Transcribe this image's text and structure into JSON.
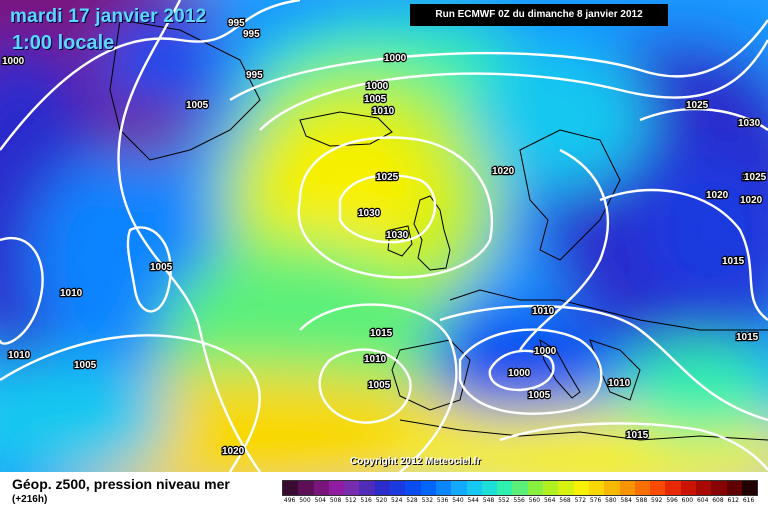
{
  "header": {
    "date": "mardi 17 janvier 2012",
    "time": "1:00 locale",
    "run": "Run ECMWF 0Z du dimanche 8 janvier 2012"
  },
  "copyright": "Copyright 2012 Meteociel.fr",
  "legend": {
    "title": "Géop. z500, pression niveau mer",
    "subtitle": "(+216h)",
    "values": [
      "496",
      "500",
      "504",
      "508",
      "512",
      "516",
      "520",
      "524",
      "528",
      "532",
      "536",
      "540",
      "544",
      "548",
      "552",
      "556",
      "560",
      "564",
      "568",
      "572",
      "576",
      "580",
      "584",
      "588",
      "592",
      "596",
      "600",
      "604",
      "608",
      "612",
      "616"
    ],
    "colors": [
      "#3b0a33",
      "#5c0e56",
      "#7a157e",
      "#901ca0",
      "#7a2cb0",
      "#4e2bb8",
      "#2a2ccc",
      "#1a3ae0",
      "#0a4cf0",
      "#0064ff",
      "#0a84ff",
      "#14a8ff",
      "#14c8f0",
      "#1ce0d8",
      "#30f0b0",
      "#5cf07a",
      "#88f040",
      "#b0f020",
      "#d8f010",
      "#f8f000",
      "#f8d800",
      "#f8b800",
      "#f89400",
      "#f87000",
      "#f84a00",
      "#e82800",
      "#c81400",
      "#a80a00",
      "#880400",
      "#600000",
      "#200000"
    ]
  },
  "isobars": [
    {
      "text": "995"
    },
    {
      "text": "995"
    },
    {
      "text": "995"
    },
    {
      "text": "1000"
    },
    {
      "text": "1000"
    },
    {
      "text": "1000"
    },
    {
      "text": "1005"
    },
    {
      "text": "1005"
    },
    {
      "text": "1010"
    },
    {
      "text": "1025"
    },
    {
      "text": "1030"
    },
    {
      "text": "1030"
    },
    {
      "text": "1025"
    },
    {
      "text": "1020"
    },
    {
      "text": "1025"
    },
    {
      "text": "1030"
    },
    {
      "text": "1025"
    },
    {
      "text": "1020"
    },
    {
      "text": "1020"
    },
    {
      "text": "1005"
    },
    {
      "text": "1010"
    },
    {
      "text": "1010"
    },
    {
      "text": "1005"
    },
    {
      "text": "1015"
    },
    {
      "text": "1010"
    },
    {
      "text": "1005"
    },
    {
      "text": "1010"
    },
    {
      "text": "1000"
    },
    {
      "text": "1000"
    },
    {
      "text": "1005"
    },
    {
      "text": "1010"
    },
    {
      "text": "1015"
    },
    {
      "text": "1015"
    },
    {
      "text": "1015"
    },
    {
      "text": "1020"
    }
  ],
  "colors": {
    "land_outline": "#000000",
    "isobar": "#ffffff"
  }
}
